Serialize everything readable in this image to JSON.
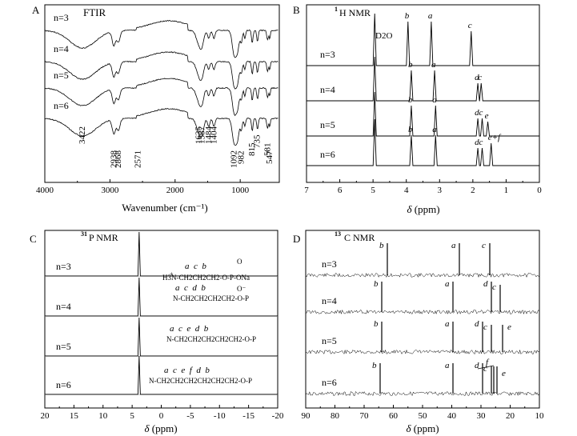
{
  "chart_data": [
    {
      "id": "A",
      "type": "line",
      "panel_letter": "A",
      "title": "FTIR",
      "xlabel": "Wavenumber (cm⁻¹)",
      "xlim": [
        4000,
        400
      ],
      "xticks": [
        "4000",
        "3000",
        "2000",
        "1000"
      ],
      "xticks_extra": [
        "3500",
        "2500",
        "1500",
        "500"
      ],
      "series": [
        {
          "name": "n=3"
        },
        {
          "name": "n=4"
        },
        {
          "name": "n=5"
        },
        {
          "name": "n=6"
        }
      ],
      "peak_labels": [
        "3422",
        "2938",
        "2868",
        "2571",
        "1635",
        "1587",
        "1484",
        "1404",
        "1092",
        "982",
        "815",
        "735",
        "581",
        "547"
      ],
      "peak_positions": [
        3422,
        2938,
        2868,
        2571,
        1635,
        1587,
        1484,
        1404,
        1092,
        982,
        815,
        735,
        581,
        547
      ]
    },
    {
      "id": "B",
      "type": "line",
      "panel_letter": "B",
      "title_sup": "1",
      "title": "H NMR",
      "xlabel_sym": "δ",
      "xlabel": " (ppm)",
      "xlim": [
        7,
        0
      ],
      "xticks": [
        "7",
        "6",
        "5",
        "4",
        "3",
        "2",
        "1",
        "0"
      ],
      "solvent_label": "D2O",
      "series": [
        {
          "name": "n=3",
          "peaks": [
            {
              "x": 4.95,
              "label": ""
            },
            {
              "x": 3.95,
              "label": "b"
            },
            {
              "x": 3.25,
              "label": "a"
            },
            {
              "x": 2.05,
              "label": "c"
            }
          ]
        },
        {
          "name": "n=4",
          "peaks": [
            {
              "x": 4.95,
              "label": ""
            },
            {
              "x": 3.85,
              "label": "b"
            },
            {
              "x": 3.15,
              "label": "a"
            },
            {
              "x": 1.85,
              "label": "d"
            },
            {
              "x": 1.75,
              "label": "c"
            }
          ]
        },
        {
          "name": "n=5",
          "peaks": [
            {
              "x": 4.95,
              "label": ""
            },
            {
              "x": 3.85,
              "label": "b"
            },
            {
              "x": 3.12,
              "label": "a"
            },
            {
              "x": 1.85,
              "label": "d"
            },
            {
              "x": 1.72,
              "label": "c"
            },
            {
              "x": 1.55,
              "label": "e"
            }
          ]
        },
        {
          "name": "n=6",
          "peaks": [
            {
              "x": 4.95,
              "label": ""
            },
            {
              "x": 3.85,
              "label": "b"
            },
            {
              "x": 3.12,
              "label": "a"
            },
            {
              "x": 1.85,
              "label": "d"
            },
            {
              "x": 1.72,
              "label": "c"
            },
            {
              "x": 1.45,
              "label": "e+f"
            }
          ]
        }
      ]
    },
    {
      "id": "C",
      "type": "line",
      "panel_letter": "C",
      "title_sup": "31",
      "title": "P NMR",
      "xlabel_sym": "δ",
      "xlabel": " (ppm)",
      "xlim": [
        20,
        -20
      ],
      "xticks": [
        "20",
        "15",
        "10",
        "5",
        "0",
        "-5",
        "-10",
        "-15",
        "-20"
      ],
      "series": [
        {
          "name": "n=3",
          "peak": 3.8
        },
        {
          "name": "n=4",
          "peak": 3.8
        },
        {
          "name": "n=5",
          "peak": 3.8
        },
        {
          "name": "n=6",
          "peak": 3.8
        }
      ],
      "structures": [
        {
          "letters": "a  c  b",
          "formula": "H3N-CH2CH2CH2-O-P-ONa",
          "top": "O",
          "bottom": "O⁻",
          "plus": "+"
        },
        {
          "letters": "a  c  d  b",
          "formula": "N-CH2CH2CH2CH2-O-P"
        },
        {
          "letters": "a  c  e  d  b",
          "formula": "N-CH2CH2CH2CH2CH2-O-P"
        },
        {
          "letters": "a  c  e  f  d  b",
          "formula": "N-CH2CH2CH2CH2CH2CH2-O-P"
        }
      ]
    },
    {
      "id": "D",
      "type": "line",
      "panel_letter": "D",
      "title_sup": "13",
      "title": "C NMR",
      "xlabel_sym": "δ",
      "xlabel": " (ppm)",
      "xlim": [
        90,
        10
      ],
      "xticks": [
        "90",
        "80",
        "70",
        "60",
        "50",
        "40",
        "30",
        "20",
        "10"
      ],
      "series": [
        {
          "name": "n=3",
          "peaks": [
            {
              "x": 62,
              "label": "b"
            },
            {
              "x": 37.5,
              "label": "a"
            },
            {
              "x": 27,
              "label": "c"
            }
          ]
        },
        {
          "name": "n=4",
          "peaks": [
            {
              "x": 64,
              "label": "b"
            },
            {
              "x": 39.5,
              "label": "a"
            },
            {
              "x": 26.5,
              "label": "d"
            },
            {
              "x": 23.5,
              "label": "c"
            }
          ]
        },
        {
          "name": "n=5",
          "peaks": [
            {
              "x": 64,
              "label": "b"
            },
            {
              "x": 39.5,
              "label": "a"
            },
            {
              "x": 29.5,
              "label": "d"
            },
            {
              "x": 26.5,
              "label": "c"
            },
            {
              "x": 22.5,
              "label": "e"
            }
          ]
        },
        {
          "name": "n=6",
          "peaks": [
            {
              "x": 64.5,
              "label": "b"
            },
            {
              "x": 39.5,
              "label": "a"
            },
            {
              "x": 29.5,
              "label": "d"
            },
            {
              "x": 26.5,
              "label": "c"
            },
            {
              "x": 25.5,
              "label": "f"
            },
            {
              "x": 24.5,
              "label": "e"
            }
          ]
        }
      ]
    }
  ]
}
